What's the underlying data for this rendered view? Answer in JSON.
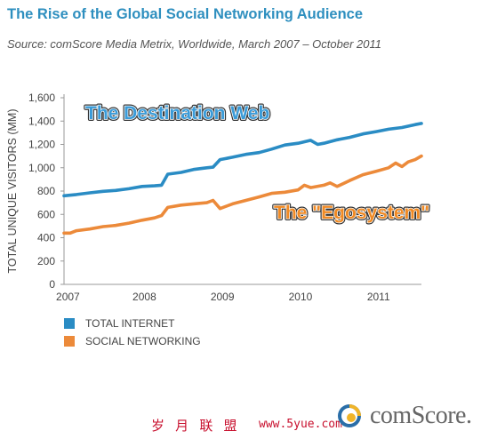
{
  "header": {
    "title": "The Rise of the Global Social Networking Audience",
    "subtitle": "Source: comScore Media Metrix, Worldwide, March 2007 – October 2011"
  },
  "footer": {
    "watermark_cn": "岁 月 联 盟",
    "watermark_url": "www.5yue.com",
    "brand": "comScore."
  },
  "colors": {
    "total_internet": "#2a8cc4",
    "social_networking": "#ec8a3a",
    "axis": "#999999",
    "brand_blue": "#2a6ea8",
    "brand_orange": "#f0b429"
  },
  "chart_data": {
    "type": "line",
    "title": "The Rise of the Global Social Networking Audience",
    "ylabel": "TOTAL UNIQUE VISITORS (MM)",
    "xlabel": "",
    "ylim": [
      0,
      1600
    ],
    "yticks": [
      "0",
      "200",
      "400",
      "600",
      "800",
      "1,000",
      "1,200",
      "1,400",
      "1,600"
    ],
    "ytick_values": [
      0,
      200,
      400,
      600,
      800,
      1000,
      1200,
      1400,
      1600
    ],
    "xlim": [
      2007.17,
      2011.75
    ],
    "xticks": [
      "2007",
      "2008",
      "2009",
      "2010",
      "2011"
    ],
    "grid": false,
    "legend_position": "bottom-left",
    "series": [
      {
        "name": "TOTAL INTERNET",
        "annotation": "The Destination Web",
        "points": [
          [
            2007.17,
            760
          ],
          [
            2007.33,
            770
          ],
          [
            2007.5,
            785
          ],
          [
            2007.67,
            798
          ],
          [
            2007.83,
            805
          ],
          [
            2008.0,
            820
          ],
          [
            2008.17,
            840
          ],
          [
            2008.33,
            845
          ],
          [
            2008.42,
            850
          ],
          [
            2008.5,
            945
          ],
          [
            2008.67,
            960
          ],
          [
            2008.83,
            985
          ],
          [
            2009.0,
            1000
          ],
          [
            2009.08,
            1005
          ],
          [
            2009.17,
            1070
          ],
          [
            2009.33,
            1090
          ],
          [
            2009.5,
            1115
          ],
          [
            2009.67,
            1130
          ],
          [
            2009.83,
            1160
          ],
          [
            2010.0,
            1195
          ],
          [
            2010.17,
            1210
          ],
          [
            2010.33,
            1235
          ],
          [
            2010.42,
            1200
          ],
          [
            2010.5,
            1210
          ],
          [
            2010.67,
            1240
          ],
          [
            2010.83,
            1260
          ],
          [
            2011.0,
            1290
          ],
          [
            2011.17,
            1310
          ],
          [
            2011.33,
            1330
          ],
          [
            2011.5,
            1345
          ],
          [
            2011.67,
            1370
          ],
          [
            2011.75,
            1380
          ]
        ]
      },
      {
        "name": "SOCIAL NETWORKING",
        "annotation": "The \"Egosystem\"",
        "points": [
          [
            2007.17,
            440
          ],
          [
            2007.25,
            440
          ],
          [
            2007.33,
            460
          ],
          [
            2007.5,
            475
          ],
          [
            2007.67,
            495
          ],
          [
            2007.83,
            505
          ],
          [
            2008.0,
            525
          ],
          [
            2008.17,
            550
          ],
          [
            2008.33,
            570
          ],
          [
            2008.42,
            590
          ],
          [
            2008.5,
            660
          ],
          [
            2008.67,
            680
          ],
          [
            2008.83,
            690
          ],
          [
            2009.0,
            700
          ],
          [
            2009.08,
            720
          ],
          [
            2009.17,
            650
          ],
          [
            2009.33,
            690
          ],
          [
            2009.5,
            720
          ],
          [
            2009.67,
            750
          ],
          [
            2009.83,
            780
          ],
          [
            2010.0,
            790
          ],
          [
            2010.17,
            810
          ],
          [
            2010.25,
            850
          ],
          [
            2010.33,
            830
          ],
          [
            2010.5,
            850
          ],
          [
            2010.58,
            870
          ],
          [
            2010.67,
            840
          ],
          [
            2010.83,
            890
          ],
          [
            2011.0,
            940
          ],
          [
            2011.17,
            970
          ],
          [
            2011.33,
            1000
          ],
          [
            2011.42,
            1040
          ],
          [
            2011.5,
            1010
          ],
          [
            2011.58,
            1050
          ],
          [
            2011.67,
            1070
          ],
          [
            2011.75,
            1100
          ]
        ]
      }
    ]
  }
}
